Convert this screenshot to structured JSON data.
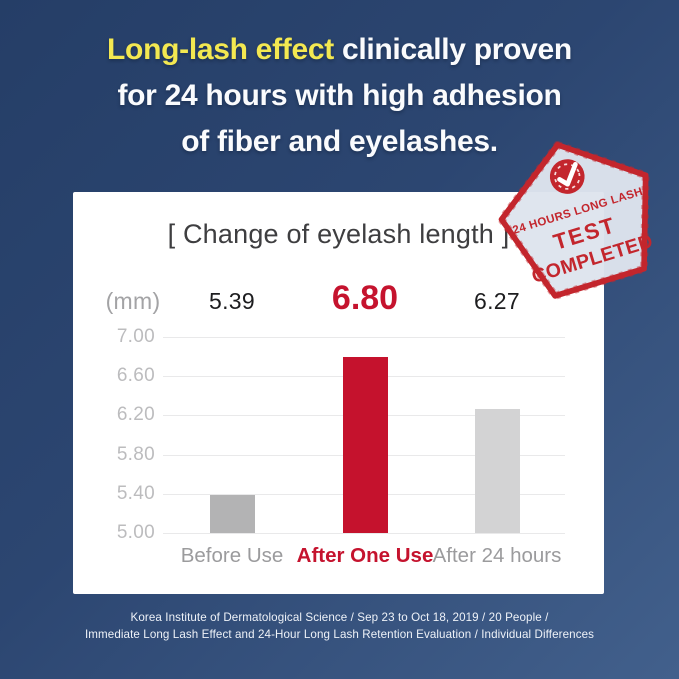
{
  "header": {
    "highlight": "Long-lash effect",
    "line1_rest": " clinically proven",
    "line2": "for 24 hours with high adhesion",
    "line3": "of fiber and eyelashes.",
    "highlight_color": "#f3e851",
    "text_color": "#fafbfd"
  },
  "stamp": {
    "arc_line": "24 HOURS LONG LASH",
    "word1": "TEST",
    "word2": "COMPLETED",
    "icon": "check-icon",
    "border_color": "#c3262d",
    "fill_color": "#dde3ec"
  },
  "chart_data": {
    "type": "bar",
    "title": "[ Change of eyelash length ]",
    "unit_label": "(mm)",
    "categories": [
      "Before Use",
      "After One Use",
      "After 24 hours"
    ],
    "values": [
      5.39,
      6.8,
      6.27
    ],
    "value_labels": [
      "5.39",
      "6.80",
      "6.27"
    ],
    "bar_colors": [
      "#b3b3b4",
      "#c5122d",
      "#d3d3d4"
    ],
    "category_colors": [
      "#9b9b9d",
      "#c5132e",
      "#9b9b9d"
    ],
    "highlight_index": 1,
    "y_ticks": [
      "7.00",
      "6.60",
      "6.20",
      "5.80",
      "5.40",
      "5.00"
    ],
    "ylim": [
      5.0,
      7.0
    ],
    "ylabel": "(mm)",
    "xlabel": "",
    "grid": true,
    "legend": false
  },
  "footer": {
    "line1": "Korea Institute of Dermatological Science / Sep 23 to Oct 18, 2019 / 20 People /",
    "line2": "Immediate Long Lash Effect and 24-Hour Long Lash Retention Evaluation / Individual Differences"
  }
}
